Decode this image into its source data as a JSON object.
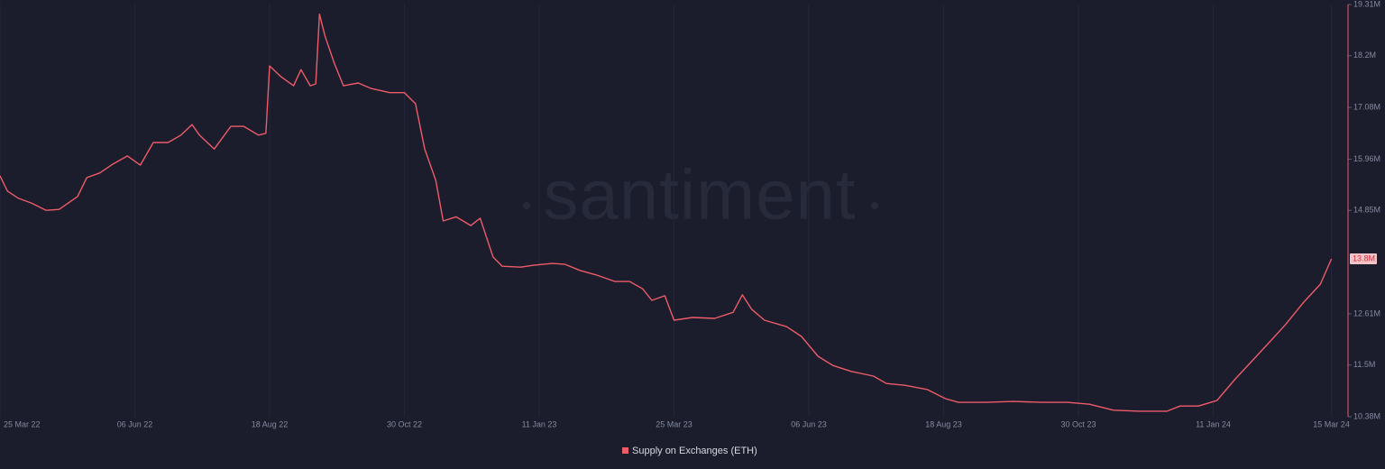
{
  "chart_data": {
    "type": "line",
    "watermark": "santiment",
    "x": [
      "2022-03-25",
      "2022-03-29",
      "2022-04-04",
      "2022-04-11",
      "2022-04-19",
      "2022-04-26",
      "2022-05-06",
      "2022-05-11",
      "2022-05-18",
      "2022-05-25",
      "2022-06-02",
      "2022-06-09",
      "2022-06-16",
      "2022-06-24",
      "2022-07-01",
      "2022-07-07",
      "2022-07-11",
      "2022-07-19",
      "2022-07-28",
      "2022-08-04",
      "2022-08-12",
      "2022-08-16",
      "2022-08-18",
      "2022-08-24",
      "2022-08-31",
      "2022-09-04",
      "2022-09-09",
      "2022-09-12",
      "2022-09-14",
      "2022-09-17",
      "2022-09-22",
      "2022-09-27",
      "2022-10-05",
      "2022-10-12",
      "2022-10-22",
      "2022-10-30",
      "2022-11-05",
      "2022-11-10",
      "2022-11-16",
      "2022-11-20",
      "2022-11-27",
      "2022-12-05",
      "2022-12-10",
      "2022-12-17",
      "2022-12-22",
      "2023-01-01",
      "2023-01-08",
      "2023-01-18",
      "2023-01-25",
      "2023-02-02",
      "2023-02-11",
      "2023-02-21",
      "2023-03-01",
      "2023-03-08",
      "2023-03-13",
      "2023-03-20",
      "2023-03-25",
      "2023-04-04",
      "2023-04-16",
      "2023-04-26",
      "2023-05-01",
      "2023-05-06",
      "2023-05-13",
      "2023-05-25",
      "2023-06-02",
      "2023-06-11",
      "2023-06-19",
      "2023-06-29",
      "2023-07-11",
      "2023-07-18",
      "2023-07-28",
      "2023-08-09",
      "2023-08-19",
      "2023-08-26",
      "2023-09-10",
      "2023-09-25",
      "2023-10-10",
      "2023-10-24",
      "2023-11-05",
      "2023-11-18",
      "2023-12-02",
      "2023-12-17",
      "2023-12-24",
      "2024-01-03",
      "2024-01-13",
      "2024-01-23",
      "2024-02-02",
      "2024-02-11",
      "2024-02-19",
      "2024-02-29",
      "2024-03-09",
      "2024-03-15"
    ],
    "series": [
      {
        "name": "Supply on Exchanges (ETH)",
        "color": "#ee5b69",
        "values": [
          15.6,
          15.27,
          15.11,
          15.01,
          14.85,
          14.87,
          15.15,
          15.56,
          15.66,
          15.85,
          16.03,
          15.83,
          16.32,
          16.32,
          16.48,
          16.71,
          16.48,
          16.18,
          16.67,
          16.67,
          16.48,
          16.52,
          17.98,
          17.75,
          17.55,
          17.9,
          17.55,
          17.59,
          19.1,
          18.63,
          18.04,
          17.55,
          17.61,
          17.49,
          17.4,
          17.4,
          17.16,
          16.18,
          15.5,
          14.62,
          14.71,
          14.52,
          14.68,
          13.84,
          13.64,
          13.62,
          13.66,
          13.7,
          13.68,
          13.55,
          13.45,
          13.31,
          13.31,
          13.15,
          12.9,
          13.0,
          12.47,
          12.53,
          12.51,
          12.64,
          13.02,
          12.71,
          12.47,
          12.33,
          12.12,
          11.69,
          11.49,
          11.36,
          11.26,
          11.1,
          11.06,
          10.97,
          10.77,
          10.69,
          10.69,
          10.71,
          10.69,
          10.69,
          10.65,
          10.52,
          10.5,
          10.5,
          10.61,
          10.61,
          10.73,
          11.2,
          11.63,
          12.02,
          12.37,
          12.86,
          13.25,
          13.8
        ]
      }
    ],
    "last_value_label": "13.8M",
    "xlim": [
      "2022-03-25",
      "2024-03-24"
    ],
    "xticks": [
      {
        "value": "2022-03-25",
        "label": "25 Mar 22"
      },
      {
        "value": "2022-06-06",
        "label": "06 Jun 22"
      },
      {
        "value": "2022-08-18",
        "label": "18 Aug 22"
      },
      {
        "value": "2022-10-30",
        "label": "30 Oct 22"
      },
      {
        "value": "2023-01-11",
        "label": "11 Jan 23"
      },
      {
        "value": "2023-03-25",
        "label": "25 Mar 23"
      },
      {
        "value": "2023-06-06",
        "label": "06 Jun 23"
      },
      {
        "value": "2023-08-18",
        "label": "18 Aug 23"
      },
      {
        "value": "2023-10-30",
        "label": "30 Oct 23"
      },
      {
        "value": "2024-01-11",
        "label": "11 Jan 24"
      },
      {
        "value": "2024-03-15",
        "label": "15 Mar 24"
      }
    ],
    "ylim": [
      10.38,
      19.31
    ],
    "yticks": [
      {
        "value": 10.38,
        "label": "10.38M"
      },
      {
        "value": 11.5,
        "label": "11.5M"
      },
      {
        "value": 12.61,
        "label": "12.61M"
      },
      {
        "value": 14.85,
        "label": "14.85M"
      },
      {
        "value": 15.96,
        "label": "15.96M"
      },
      {
        "value": 17.08,
        "label": "17.08M"
      },
      {
        "value": 18.2,
        "label": "18.2M"
      },
      {
        "value": 19.31,
        "label": "19.31M"
      }
    ],
    "grid": true
  }
}
